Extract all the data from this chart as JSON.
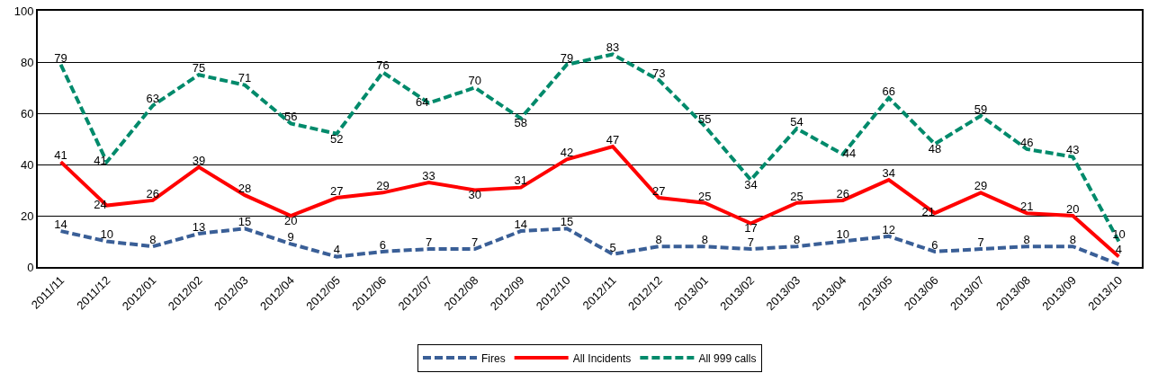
{
  "chart_data": {
    "type": "line",
    "categories": [
      "2011/11",
      "2011/12",
      "2012/01",
      "2012/02",
      "2012/03",
      "2012/04",
      "2012/05",
      "2012/06",
      "2012/07",
      "2012/08",
      "2012/09",
      "2012/10",
      "2012/11",
      "2012/12",
      "2013/01",
      "2013/02",
      "2013/03",
      "2013/04",
      "2013/05",
      "2013/06",
      "2013/07",
      "2013/08",
      "2013/09",
      "2013/10"
    ],
    "series": [
      {
        "name": "Fires",
        "color": "#3a5f97",
        "line_style": "dashed",
        "values": [
          14,
          10,
          8,
          13,
          15,
          9,
          4,
          6,
          7,
          7,
          14,
          15,
          5,
          8,
          8,
          7,
          8,
          10,
          12,
          6,
          7,
          8,
          8,
          1
        ],
        "value_labels": [
          "14",
          "10",
          "8",
          "13",
          "15",
          "9",
          "4",
          "6",
          "7",
          "7",
          "14",
          "15",
          "5",
          "8",
          "8",
          "7",
          "8",
          "10",
          "12",
          "6",
          "7",
          "8",
          "8",
          null
        ]
      },
      {
        "name": "All Incidents",
        "color": "#ff0000",
        "line_style": "solid",
        "values": [
          41,
          24,
          26,
          39,
          28,
          20,
          27,
          29,
          33,
          30,
          31,
          42,
          47,
          27,
          25,
          17,
          25,
          26,
          34,
          21,
          29,
          21,
          20,
          4
        ],
        "value_labels": [
          "41",
          "24",
          "26",
          "39",
          "28",
          "20",
          "27",
          "29",
          "33",
          "30",
          "31",
          "42",
          "47",
          "27",
          "25",
          "17",
          "25",
          "26",
          "34",
          "21",
          "29",
          "21",
          "20",
          "4"
        ]
      },
      {
        "name": "All 999 calls",
        "color": "#008a6b",
        "line_style": "dashed",
        "values": [
          79,
          41,
          63,
          75,
          71,
          56,
          52,
          76,
          64,
          70,
          58,
          79,
          83,
          73,
          55,
          34,
          54,
          44,
          66,
          48,
          59,
          46,
          43,
          10
        ],
        "value_labels": [
          "79",
          "41",
          "63",
          "75",
          "71",
          "56",
          "52",
          "76",
          "64",
          "70",
          "58",
          "79",
          "83",
          "73",
          "55",
          "34",
          "54",
          "44",
          "66",
          "48",
          "59",
          "46",
          "43",
          "10"
        ]
      }
    ],
    "ylim": [
      0,
      100
    ],
    "yticks": [
      0,
      20,
      40,
      60,
      80,
      100
    ],
    "grid": "y",
    "legend": "bottom",
    "marker": "none"
  }
}
